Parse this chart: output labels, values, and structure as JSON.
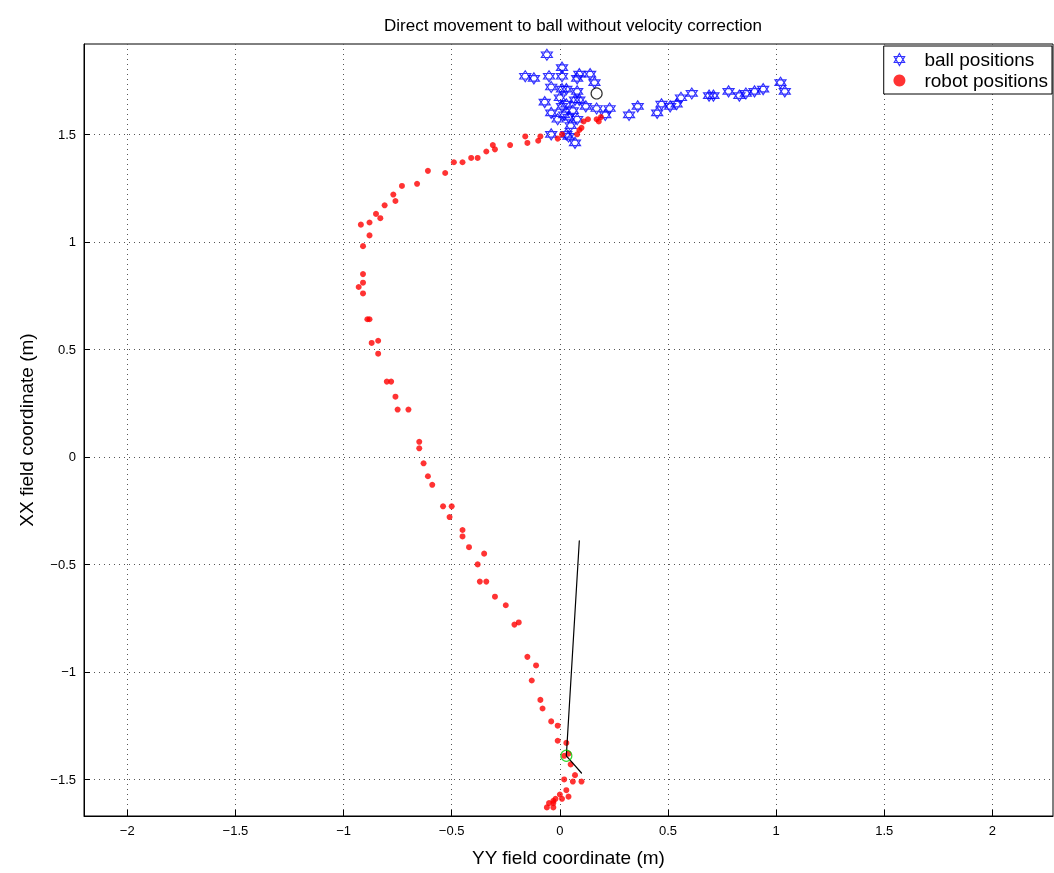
{
  "chart_data": {
    "type": "scatter",
    "title": "Direct movement to ball without velocity correction",
    "xlabel": "YY field coordinate (m)",
    "ylabel": "XX field coordinate (m)",
    "xlim": [
      -2.2,
      2.28
    ],
    "ylim": [
      -1.67,
      1.92
    ],
    "xticks": [
      -2,
      -1.5,
      -1,
      -0.5,
      0,
      0.5,
      1,
      1.5,
      2
    ],
    "yticks": [
      -1.5,
      -1,
      -0.5,
      0,
      0.5,
      1,
      1.5
    ],
    "grid": true,
    "legend": "top right",
    "series": [
      {
        "name": "ball positions",
        "color": "#0000ff",
        "marker": "star",
        "x": [
          -0.06,
          -0.16,
          -0.12,
          -0.05,
          0.01,
          0.01,
          0.09,
          0.14,
          0.08,
          0.16,
          -0.04,
          0.03,
          0.08,
          -0.07,
          -0.04,
          0.0,
          0.03,
          0.06,
          0.04,
          0.09,
          0.12,
          0.17,
          0.23,
          0.21,
          0.08,
          0.01,
          -0.04,
          0.03,
          0.07,
          0.04,
          0.02,
          0.05,
          -0.01,
          0.07,
          0.01,
          0.32,
          0.36,
          0.45,
          0.47,
          0.51,
          0.54,
          0.56,
          0.61,
          0.69,
          0.71,
          0.78,
          0.83,
          0.86,
          0.9,
          0.94,
          1.02,
          1.04
        ],
        "values": [
          1.87,
          1.77,
          1.76,
          1.77,
          1.81,
          1.77,
          1.78,
          1.78,
          1.76,
          1.74,
          1.72,
          1.71,
          1.7,
          1.65,
          1.6,
          1.67,
          1.64,
          1.61,
          1.58,
          1.66,
          1.63,
          1.62,
          1.62,
          1.59,
          1.57,
          1.63,
          1.5,
          1.5,
          1.46,
          1.49,
          1.59,
          1.54,
          1.57,
          1.66,
          1.71,
          1.59,
          1.63,
          1.6,
          1.64,
          1.63,
          1.64,
          1.67,
          1.69,
          1.68,
          1.68,
          1.7,
          1.68,
          1.69,
          1.7,
          1.71,
          1.74,
          1.7
        ]
      },
      {
        "name": "robot positions",
        "color": "#ff0000",
        "marker": "circle",
        "x": [
          -0.06,
          -0.05,
          -0.03,
          -0.03,
          -0.03,
          -0.02,
          0.01,
          0.0,
          0.04,
          0.03,
          0.02,
          0.06,
          0.1,
          0.07,
          0.05,
          0.02,
          0.04,
          0.03,
          -0.01,
          -0.01,
          -0.04,
          -0.08,
          -0.09,
          -0.13,
          -0.11,
          -0.15,
          -0.19,
          -0.21,
          -0.25,
          -0.3,
          -0.34,
          -0.37,
          -0.38,
          -0.35,
          -0.42,
          -0.45,
          -0.45,
          -0.51,
          -0.5,
          -0.54,
          -0.59,
          -0.61,
          -0.63,
          -0.65,
          -0.65,
          -0.7,
          -0.75,
          -0.76,
          -0.78,
          -0.8,
          -0.84,
          -0.84,
          -0.87,
          -0.88,
          -0.89,
          -0.91,
          -0.93,
          -0.91,
          -0.91,
          -0.91,
          -0.88,
          -0.92,
          -0.88,
          -0.83,
          -0.85,
          -0.81,
          -0.76,
          -0.77,
          -0.73,
          -0.66,
          -0.61,
          -0.53,
          -0.49,
          -0.45,
          -0.41,
          -0.38,
          -0.34,
          -0.3,
          -0.31,
          -0.23,
          -0.16,
          -0.15,
          -0.1,
          -0.09,
          -0.01,
          0.01,
          0.08,
          0.09,
          0.1,
          0.11,
          0.13,
          0.17,
          0.19,
          0.18
        ],
        "values": [
          -1.63,
          -1.61,
          -1.63,
          -1.6,
          -1.61,
          -1.59,
          -1.59,
          -1.57,
          -1.58,
          -1.55,
          -1.5,
          -1.51,
          -1.51,
          -1.48,
          -1.43,
          -1.39,
          -1.38,
          -1.33,
          -1.32,
          -1.25,
          -1.23,
          -1.17,
          -1.13,
          -1.04,
          -0.97,
          -0.93,
          -0.77,
          -0.78,
          -0.69,
          -0.65,
          -0.58,
          -0.58,
          -0.5,
          -0.45,
          -0.42,
          -0.37,
          -0.34,
          -0.28,
          -0.23,
          -0.23,
          -0.13,
          -0.09,
          -0.03,
          0.04,
          0.07,
          0.22,
          0.22,
          0.28,
          0.35,
          0.35,
          0.48,
          0.54,
          0.53,
          0.64,
          0.64,
          0.76,
          0.79,
          0.81,
          0.85,
          0.98,
          1.03,
          1.08,
          1.09,
          1.11,
          1.13,
          1.17,
          1.19,
          1.22,
          1.26,
          1.27,
          1.33,
          1.32,
          1.37,
          1.37,
          1.39,
          1.39,
          1.42,
          1.43,
          1.45,
          1.45,
          1.49,
          1.46,
          1.47,
          1.49,
          1.48,
          1.5,
          1.5,
          1.52,
          1.53,
          1.56,
          1.57,
          1.57,
          1.58,
          1.56
        ]
      },
      {
        "type": "line",
        "color": "#000000",
        "marker": "none",
        "x": [
          0.09,
          0.03,
          0.1
        ],
        "values": [
          -0.39,
          -1.39,
          -1.47
        ]
      },
      {
        "color": "#00cc00",
        "marker": "circle",
        "x": [
          0.03
        ],
        "values": [
          -1.39
        ]
      },
      {
        "color": "#000000",
        "marker": "circle",
        "x": [
          0.17
        ],
        "values": [
          1.69
        ]
      }
    ]
  }
}
